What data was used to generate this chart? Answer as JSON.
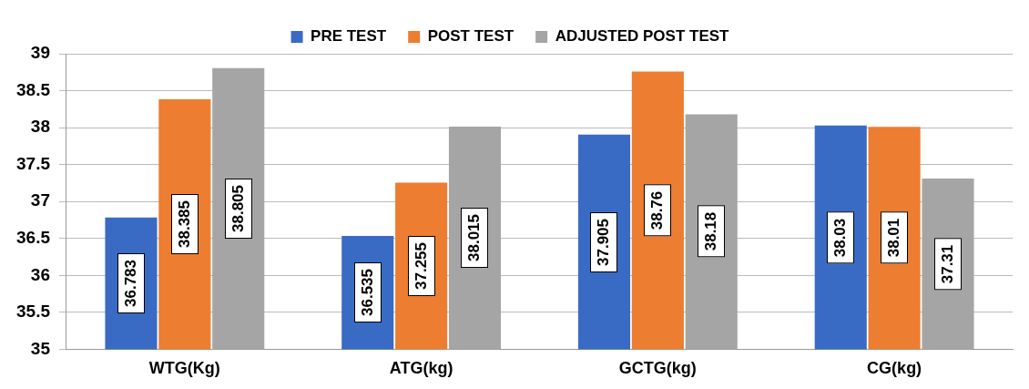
{
  "chart_data": {
    "type": "bar",
    "categories": [
      "WTG(Kg)",
      "ATG(kg)",
      "GCTG(kg)",
      "CG(kg)"
    ],
    "series": [
      {
        "name": "PRE TEST",
        "color": "#3a6bc4",
        "values": [
          36.783,
          36.535,
          37.905,
          38.03
        ]
      },
      {
        "name": "POST TEST",
        "color": "#ed7d31",
        "values": [
          38.385,
          37.255,
          38.76,
          38.01
        ]
      },
      {
        "name": "ADJUSTED POST TEST",
        "color": "#a5a5a5",
        "values": [
          38.805,
          38.015,
          38.18,
          37.31
        ]
      }
    ],
    "ylim": [
      35,
      39
    ],
    "yticks": [
      35,
      35.5,
      36,
      36.5,
      37,
      37.5,
      38,
      38.5,
      39
    ],
    "grid": "y",
    "legend": "top",
    "data_labels": true
  }
}
